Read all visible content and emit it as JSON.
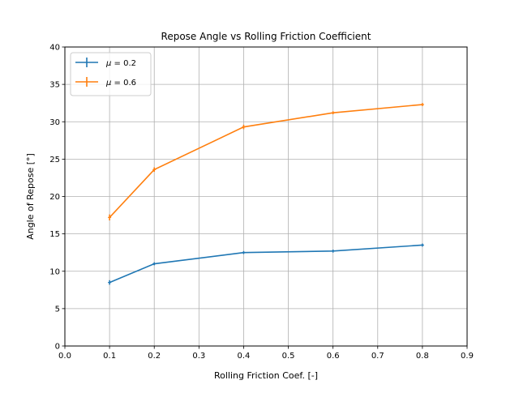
{
  "chart_data": {
    "type": "line",
    "title": "Repose Angle vs Rolling Friction Coefficient",
    "xlabel": "Rolling Friction Coef. [-]",
    "ylabel": "Angle of Repose [°]",
    "xlim": [
      0.0,
      0.9
    ],
    "ylim": [
      0,
      40
    ],
    "xticks": [
      0.0,
      0.1,
      0.2,
      0.3,
      0.4,
      0.5,
      0.6,
      0.7,
      0.8,
      0.9
    ],
    "xtick_labels": [
      "0.0",
      "0.1",
      "0.2",
      "0.3",
      "0.4",
      "0.5",
      "0.6",
      "0.7",
      "0.8",
      "0.9"
    ],
    "yticks": [
      0,
      5,
      10,
      15,
      20,
      25,
      30,
      35,
      40
    ],
    "ytick_labels": [
      "0",
      "5",
      "10",
      "15",
      "20",
      "25",
      "30",
      "35",
      "40"
    ],
    "grid": true,
    "legend_position": "top-left",
    "error_bars": true,
    "x": [
      0.1,
      0.2,
      0.4,
      0.6,
      0.8
    ],
    "series": [
      {
        "name": "μ = 0.2",
        "name_prefix": "μ",
        "name_suffix": "= 0.2",
        "color": "#1f77b4",
        "values": [
          8.5,
          11.0,
          12.5,
          12.7,
          13.5
        ],
        "errors": [
          0.3,
          0.2,
          0.2,
          0.2,
          0.2
        ]
      },
      {
        "name": "μ = 0.6",
        "name_prefix": "μ",
        "name_suffix": "= 0.6",
        "color": "#ff7f0e",
        "values": [
          17.2,
          23.6,
          29.3,
          31.2,
          32.3
        ],
        "errors": [
          0.4,
          0.3,
          0.3,
          0.2,
          0.2
        ]
      }
    ]
  }
}
